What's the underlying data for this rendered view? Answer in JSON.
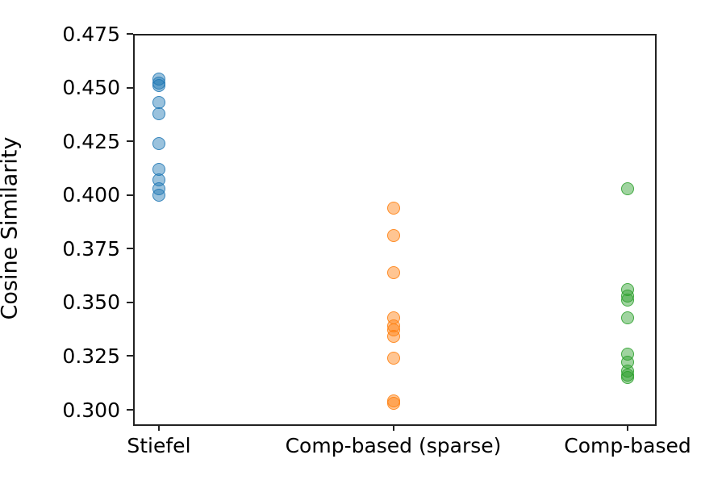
{
  "figure": {
    "background_color": "#ffffff",
    "spine_color": "#222222"
  },
  "chart_data": {
    "type": "scatter",
    "title": "",
    "xlabel": "",
    "ylabel": "Cosine Similarity",
    "grid": false,
    "legend": "none",
    "categories": [
      "Stiefel",
      "Comp-based (sparse)",
      "Comp-based"
    ],
    "series": [
      {
        "name": "Stiefel",
        "color": "#1f77b4",
        "values": [
          0.454,
          0.452,
          0.451,
          0.443,
          0.438,
          0.424,
          0.412,
          0.407,
          0.403,
          0.4
        ]
      },
      {
        "name": "Comp-based (sparse)",
        "color": "#ff7f0e",
        "values": [
          0.394,
          0.381,
          0.364,
          0.343,
          0.339,
          0.337,
          0.334,
          0.324,
          0.304,
          0.303
        ]
      },
      {
        "name": "Comp-based",
        "color": "#2ca02c",
        "values": [
          0.403,
          0.356,
          0.353,
          0.351,
          0.343,
          0.326,
          0.322,
          0.318,
          0.316,
          0.315
        ]
      }
    ],
    "yticks": [
      0.3,
      0.325,
      0.35,
      0.375,
      0.4,
      0.425,
      0.45,
      0.475
    ],
    "ytick_labels": [
      "0.300",
      "0.325",
      "0.350",
      "0.375",
      "0.400",
      "0.425",
      "0.450",
      "0.475"
    ],
    "ylim": [
      0.294,
      0.475
    ],
    "xlim": [
      -0.11,
      2.11
    ],
    "marker_alpha_fill": 0.45,
    "marker_alpha_edge": 0.8
  }
}
